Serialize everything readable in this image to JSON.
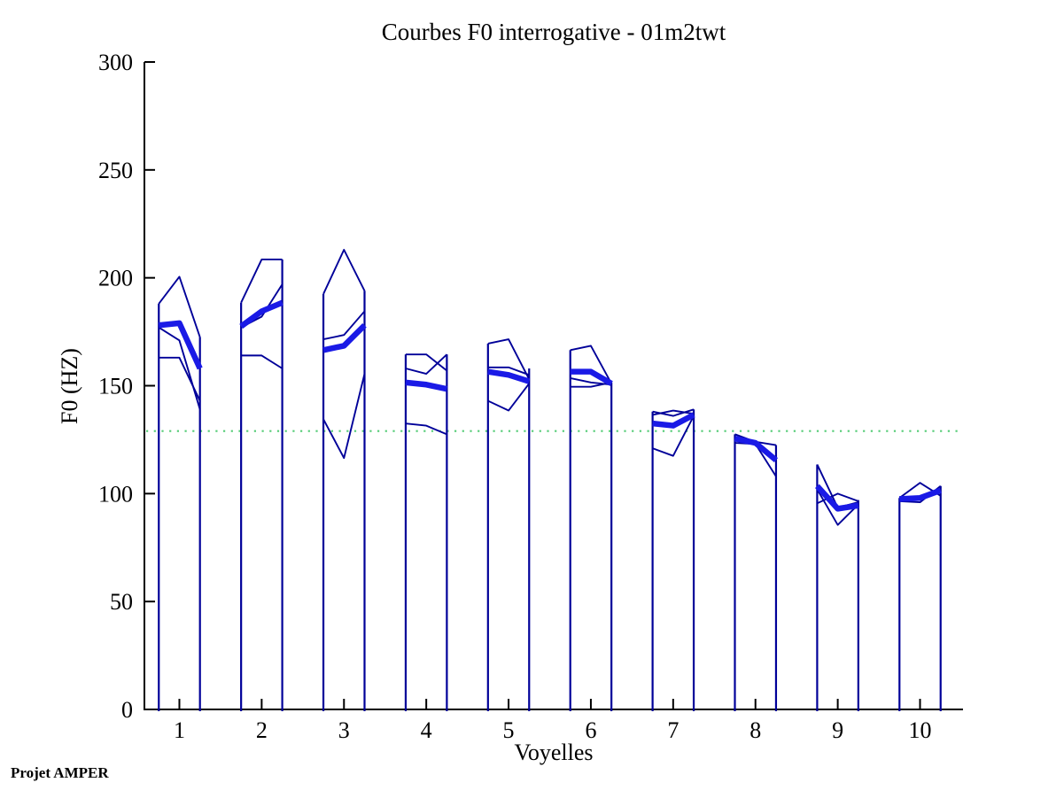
{
  "page": {
    "footer": "Projet AMPER"
  },
  "colors": {
    "axis": "#000000",
    "thin_line": "#000099",
    "mean_line": "#1A1AE6",
    "reference_line": "#55CC77",
    "background": "#FFFFFF"
  },
  "chart_data": {
    "type": "line",
    "title": "Courbes F0 interrogative - 01m2twt",
    "xlabel": "Voyelles",
    "ylabel": "F0 (HZ)",
    "xlim": [
      0.575,
      10.522
    ],
    "ylim": [
      0,
      300
    ],
    "yticks": [
      0,
      50,
      100,
      150,
      200,
      250,
      300
    ],
    "xticks": [
      1,
      2,
      3,
      4,
      5,
      6,
      7,
      8,
      9,
      10
    ],
    "grid": false,
    "legend": "none",
    "x_point_offsets": [
      -0.25,
      0,
      0.25
    ],
    "reference_line": {
      "y": 129
    },
    "series_note": "Per vowel: 3 thin repetition curves (onset, middle, offset F0 in Hz), 1 thick mean curve, and two vertical column edges rising from 0 Hz to column_tops values.",
    "vowels": [
      {
        "x": 1,
        "reps": [
          [
            188,
            200.5,
            172.5
          ],
          [
            163,
            163,
            143
          ],
          [
            177,
            171,
            139
          ]
        ],
        "mean": [
          178,
          179,
          158
        ],
        "column_tops": [
          188,
          172.5
        ]
      },
      {
        "x": 2,
        "reps": [
          [
            188.5,
            208.5,
            208.5
          ],
          [
            177,
            182,
            197
          ],
          [
            164,
            164,
            158
          ]
        ],
        "mean": [
          177.5,
          184.5,
          188.5
        ],
        "column_tops": [
          188.5,
          208.5
        ]
      },
      {
        "x": 3,
        "reps": [
          [
            192.5,
            213,
            194
          ],
          [
            171.5,
            173.5,
            184.5
          ],
          [
            134.5,
            116.5,
            155.5
          ]
        ],
        "mean": [
          166.5,
          168.5,
          178
        ],
        "column_tops": [
          192.5,
          194
        ]
      },
      {
        "x": 4,
        "reps": [
          [
            164.5,
            164.5,
            157
          ],
          [
            158,
            155.5,
            164.5
          ],
          [
            132.5,
            131.5,
            127.5
          ]
        ],
        "mean": [
          151.5,
          150.5,
          148.5
        ],
        "column_tops": [
          164.5,
          164.5
        ]
      },
      {
        "x": 5,
        "reps": [
          [
            169.5,
            171.5,
            153
          ],
          [
            158.5,
            158.5,
            155
          ],
          [
            143,
            138.5,
            151
          ]
        ],
        "mean": [
          156.5,
          155,
          152
        ],
        "column_tops": [
          169.5,
          158
        ]
      },
      {
        "x": 6,
        "reps": [
          [
            166.5,
            168.5,
            151
          ],
          [
            153.5,
            151.5,
            150.5
          ],
          [
            149.5,
            149.5,
            151.5
          ]
        ],
        "mean": [
          156.5,
          156.5,
          151
        ],
        "column_tops": [
          166.5,
          151.5
        ]
      },
      {
        "x": 7,
        "reps": [
          [
            138,
            136,
            139
          ],
          [
            136.5,
            138.5,
            137
          ],
          [
            121,
            117.5,
            136
          ]
        ],
        "mean": [
          132.5,
          131.5,
          136.5
        ],
        "column_tops": [
          138,
          139
        ]
      },
      {
        "x": 8,
        "reps": [
          [
            127.5,
            124,
            122.5
          ],
          [
            126,
            123.5,
            116
          ],
          [
            123.5,
            123,
            108
          ]
        ],
        "mean": [
          125.5,
          123.5,
          115.5
        ],
        "column_tops": [
          127.5,
          122.5
        ]
      },
      {
        "x": 9,
        "reps": [
          [
            113.5,
            93.5,
            96
          ],
          [
            95.5,
            100,
            96.5
          ],
          [
            102,
            85.5,
            95
          ]
        ],
        "mean": [
          103.5,
          93,
          94.5
        ],
        "column_tops": [
          113.5,
          97
        ]
      },
      {
        "x": 10,
        "reps": [
          [
            98,
            105,
            99
          ],
          [
            96.5,
            96,
            103.5
          ],
          [
            98.5,
            97.5,
            100.5
          ]
        ],
        "mean": [
          97.5,
          98,
          101.5
        ],
        "column_tops": [
          98,
          103.5
        ]
      }
    ]
  }
}
